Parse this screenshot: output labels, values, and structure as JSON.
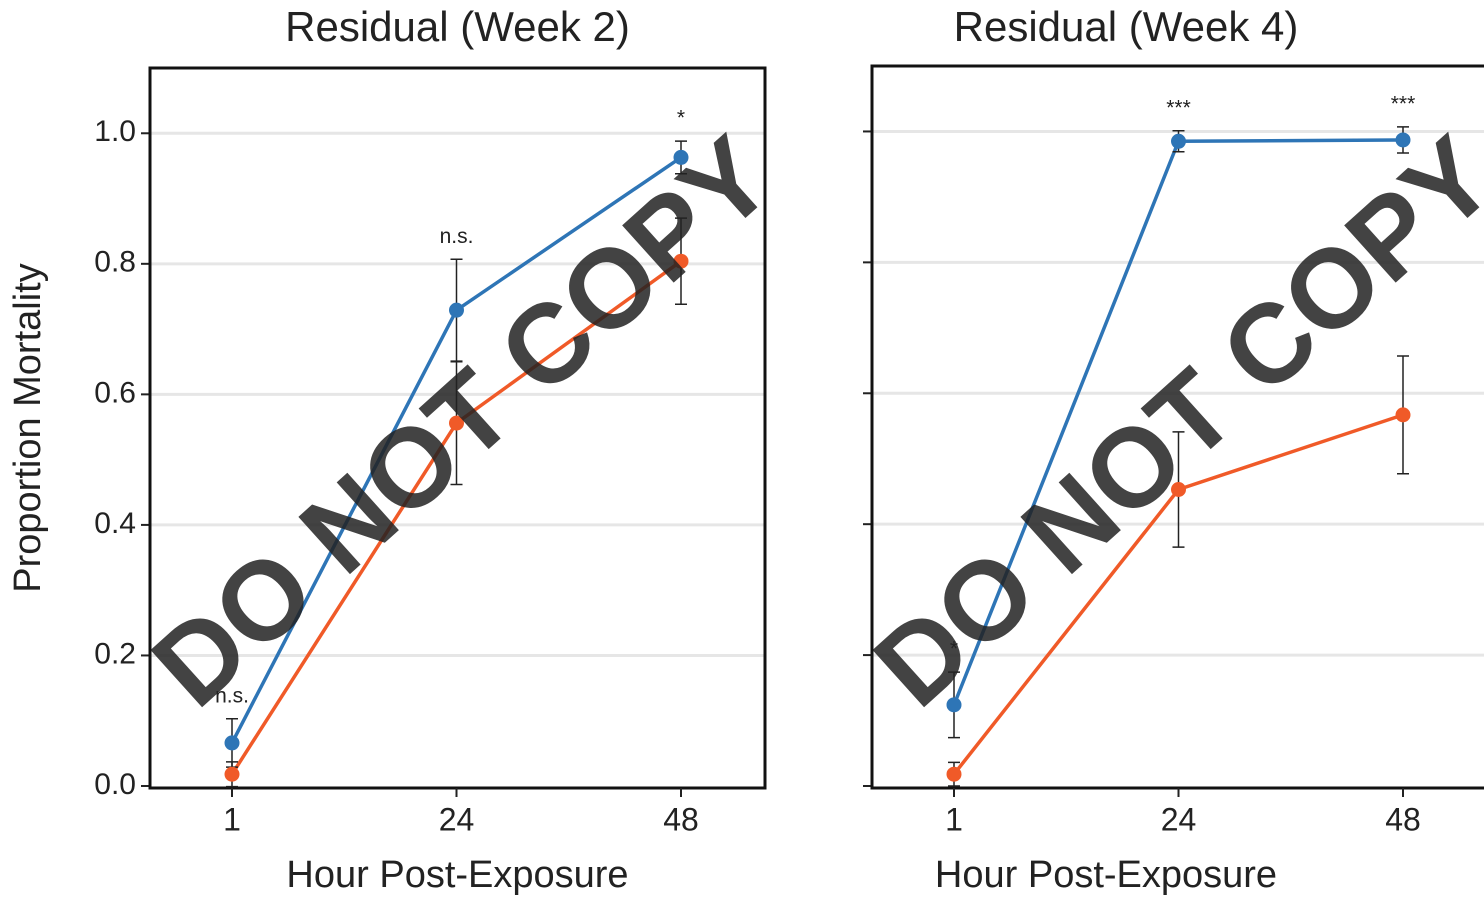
{
  "chart_data": [
    {
      "type": "line",
      "title": "Residual (Week 2)",
      "xlabel": "Hour Post-Exposure",
      "ylabel": "Proportion Mortality",
      "watermark": "DO NOT COPY",
      "categories": [
        "1",
        "24",
        "48"
      ],
      "ylim": [
        0,
        1.1
      ],
      "yticks": [
        {
          "value": 0,
          "label": "0.0"
        },
        {
          "value": 0.2,
          "label": "0.2"
        },
        {
          "value": 0.4,
          "label": "0.4"
        },
        {
          "value": 0.6,
          "label": "0.6"
        },
        {
          "value": 0.8,
          "label": "0.8"
        },
        {
          "value": 1,
          "label": "1.0"
        }
      ],
      "ytick_labels": true,
      "grid": true,
      "series": [
        {
          "color": "#2e75b6",
          "values": [
            0.066,
            0.729,
            0.963
          ],
          "errors": [
            0.037,
            0.078,
            0.025
          ]
        },
        {
          "color": "#f05a28",
          "values": [
            0.018,
            0.556,
            0.804
          ],
          "errors": [
            0.019,
            0.094,
            0.066
          ]
        }
      ],
      "annotations": [
        "n.s.",
        "n.s.",
        "*"
      ]
    },
    {
      "type": "line",
      "title": "Residual (Week 4)",
      "xlabel": "Hour Post-Exposure",
      "watermark": "DO NOT COPY",
      "categories": [
        "1",
        "24",
        "48"
      ],
      "ylim": [
        0,
        1.1
      ],
      "yticks": [
        0,
        0.2,
        0.4,
        0.6,
        0.8,
        1
      ],
      "ytick_labels": false,
      "grid": true,
      "series": [
        {
          "color": "#2e75b6",
          "values": [
            0.124,
            0.985,
            0.987
          ],
          "errors": [
            0.05,
            0.016,
            0.02
          ]
        },
        {
          "color": "#f05a28",
          "values": [
            0.018,
            0.453,
            0.567
          ],
          "errors": [
            0.018,
            0.088,
            0.09
          ]
        }
      ],
      "annotations": [
        "*",
        "***",
        "***"
      ]
    }
  ]
}
